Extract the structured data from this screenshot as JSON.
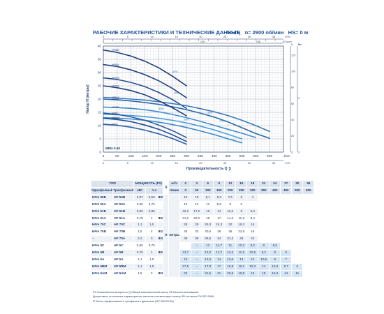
{
  "header": {
    "title": "РАБОЧИЕ ХАРАКТЕРИСТИКИ И ТЕХНИЧЕСКИЕ ДАННЫЕ",
    "freq": "50 Гц",
    "speed": "n= 2900 об/мин",
    "hs": "HS= 0 м"
  },
  "chart_data": {
    "type": "line",
    "xlabel": "Производительность Q",
    "ylabel": "Напор H (метры)",
    "xlim": [
      0,
      650
    ],
    "ylim": [
      0,
      40
    ],
    "x_ticks": [
      0,
      50,
      100,
      150,
      200,
      250,
      300,
      350,
      400,
      450,
      500,
      550,
      600
    ],
    "x_tick_labels": [
      "0",
      "50",
      "100",
      "150",
      "200",
      "250",
      "300",
      "350",
      "400",
      "450",
      "500",
      "550",
      "600"
    ],
    "x_unit": "l/min",
    "y_ticks": [
      0,
      5,
      10,
      15,
      20,
      25,
      30,
      35,
      40
    ],
    "top_axis_ticks": [
      0,
      2,
      4,
      6,
      8,
      10,
      12,
      14,
      16,
      18,
      20,
      22,
      24,
      26,
      28,
      30,
      32,
      34,
      36
    ],
    "top_axis_labels": [
      "0",
      "5",
      "10",
      "15",
      "20",
      "25",
      "30",
      "35"
    ],
    "top_axis_unit": "m³/h",
    "top2_axis_labels": [
      "0",
      "100",
      "150"
    ],
    "top2_axis_unit": "US g.p.m.",
    "right_axis1_labels": [
      "0",
      "20",
      "40",
      "60",
      "80",
      "100",
      "120"
    ],
    "right_axis1_unit": "ft",
    "right_axis2_labels": [
      "0",
      "2",
      "4",
      "6",
      "8",
      "10",
      "12",
      "14"
    ],
    "right_axis2_unit": "bar",
    "bottom2_axis_labels": [
      "0",
      "5",
      "10",
      "15",
      "20",
      "25",
      "30",
      "35"
    ],
    "bottom2_axis_unit": "m³/h",
    "mei_label": "MEI≥ 0.40",
    "grid": true,
    "series": [
      {
        "name": "HF50B",
        "color": "#1f3a7a",
        "x": [
          0,
          50,
          100,
          150,
          200,
          250,
          300
        ],
        "y": [
          38.5,
          37.6,
          36.2,
          34.3,
          31.8,
          28.6,
          25.0
        ]
      },
      {
        "name": "HF50A",
        "color": "#243f82",
        "x": [
          0,
          50,
          100,
          150,
          200,
          250,
          300
        ],
        "y": [
          33.0,
          32.3,
          31.0,
          29.2,
          26.9,
          24.0,
          20.5
        ]
      },
      {
        "name": "HF51B",
        "color": "#2a4d8f",
        "x": [
          0,
          50,
          100,
          150,
          200,
          250,
          300
        ],
        "y": [
          28.0,
          27.4,
          26.3,
          24.7,
          22.5,
          19.8,
          16.5
        ]
      },
      {
        "name": "HF51A",
        "color": "#3a78bd",
        "x": [
          0,
          50,
          100,
          150,
          200,
          250,
          300,
          350,
          400,
          450,
          500,
          550,
          600
        ],
        "y": [
          20.6,
          20.4,
          20.0,
          19.6,
          19.0,
          18.3,
          17.5,
          16.4,
          15.2,
          13.8,
          12.0,
          10.0,
          7.8
        ]
      },
      {
        "name": "HF70C",
        "color": "#2b6aa9",
        "x": [
          0,
          50,
          100,
          150,
          200,
          250,
          300,
          350,
          400,
          450,
          500,
          550,
          600
        ],
        "y": [
          20.0,
          19.7,
          19.3,
          18.7,
          18.0,
          17.1,
          16.0,
          14.7,
          13.2,
          11.4,
          9.2,
          7.0,
          5.2
        ]
      },
      {
        "name": "HF70B",
        "color": "#3f8ed0",
        "x": [
          0,
          50,
          100,
          150,
          200,
          250,
          300,
          350,
          400,
          450,
          500,
          550
        ],
        "y": [
          17.0,
          16.8,
          16.5,
          16.0,
          15.2,
          14.2,
          13.0,
          11.6,
          10.1,
          8.6,
          7.1,
          5.5
        ]
      },
      {
        "name": "HF70A",
        "color": "#1f3f7f",
        "x": [
          0,
          50,
          100,
          150,
          200,
          250,
          300
        ],
        "y": [
          25.0,
          24.3,
          23.2,
          21.6,
          19.4,
          16.7,
          13.7
        ]
      },
      {
        "name": "HF5BM",
        "color": "#4a9fe0",
        "x": [
          0,
          50,
          100,
          150,
          200,
          250,
          300,
          350,
          400,
          450,
          500
        ],
        "y": [
          14.3,
          14.1,
          13.8,
          13.4,
          12.8,
          12.0,
          11.0,
          9.8,
          8.4,
          6.7,
          5.0
        ]
      },
      {
        "name": "HF5AM",
        "color": "#3b87cb",
        "x": [
          0,
          50,
          100,
          150,
          200,
          250,
          300,
          350,
          400,
          450,
          500
        ],
        "y": [
          13.0,
          12.8,
          12.5,
          12.0,
          11.3,
          10.4,
          9.3,
          8.0,
          6.6,
          5.0,
          3.5
        ]
      },
      {
        "name": "HF5C",
        "color": "#2c5fa3",
        "x": [
          0,
          50,
          100,
          150,
          200,
          250,
          300
        ],
        "y": [
          14.7,
          14.2,
          13.3,
          12.0,
          10.2,
          8.1,
          5.5
        ]
      },
      {
        "name": "HF5B",
        "color": "#244d92",
        "x": [
          0,
          50,
          100,
          150,
          200,
          250,
          300
        ],
        "y": [
          12.8,
          12.3,
          11.5,
          10.2,
          8.6,
          6.5,
          4.0
        ]
      },
      {
        "name": "HF5A",
        "color": "#2d5faa",
        "x": [
          0,
          50,
          100,
          150,
          200,
          250,
          300
        ],
        "y": [
          10.5,
          10.1,
          9.4,
          8.3,
          6.9,
          5.1,
          3.0
        ]
      }
    ],
    "efficiency_labels": [
      "40%",
      "45%",
      "48%",
      "50%",
      "55%",
      "60%"
    ]
  },
  "table": {
    "head1": [
      "ТИП",
      "МОЩНОСТЬ (P2)",
      "Q"
    ],
    "head2": [
      "Однофазный",
      "Трехфазный",
      "кВт",
      "л.с."
    ],
    "flow_m3h": [
      "0",
      "3",
      "6",
      "9",
      "12",
      "15",
      "18",
      "21",
      "24",
      "27",
      "30",
      "36"
    ],
    "flow_lmin": [
      "0",
      "50",
      "100",
      "150",
      "200",
      "250",
      "300",
      "350",
      "400",
      "450",
      "500",
      "600"
    ],
    "unit_m3h": "м³/ч",
    "unit_lmin": "л/мин",
    "h_label": "H",
    "h_unit": "метры",
    "rows": [
      {
        "single": "HFm 50B",
        "three": "HF 50B",
        "kw": "0,37",
        "hp": "0,50",
        "ie": "IE2",
        "values": [
          "10",
          "10",
          "9,1",
          "8,3",
          "7,5",
          "6",
          "4",
          "",
          "",
          "",
          "",
          ""
        ]
      },
      {
        "single": "HFm 50A",
        "three": "HF 50A",
        "kw": "0,55",
        "hp": "0,75",
        "ie": "",
        "values": [
          "12",
          "12",
          "11",
          "9,6",
          "8",
          "6",
          "",
          "",
          "",
          "",
          "",
          ""
        ]
      },
      {
        "single": "HFm 51B",
        "three": "HF 51B",
        "kw": "0,60",
        "hp": "0,85",
        "ie": "",
        "values": [
          "16,2",
          "17,2",
          "16",
          "14",
          "11,6",
          "9",
          "5,4",
          "",
          "",
          "",
          "",
          ""
        ]
      },
      {
        "single": "HFm 51A",
        "three": "HF 51A",
        "kw": "0,75",
        "hp": "1",
        "ie": "IE2",
        "values": [
          "21,2",
          "20,2",
          "19",
          "17",
          "14,6",
          "11,6",
          "8,4",
          "",
          "",
          "",
          "",
          ""
        ]
      },
      {
        "single": "HFm 70C",
        "three": "HF 70C",
        "kw": "1,1",
        "hp": "1,5",
        "ie": "",
        "values": [
          "29",
          "28",
          "26,3",
          "24,3",
          "22",
          "18,3",
          "15",
          "",
          "",
          "",
          "",
          ""
        ]
      },
      {
        "single": "HFm 70B",
        "three": "HF 70B",
        "kw": "1,5",
        "hp": "2",
        "ie": "IE2",
        "values": [
          "33",
          "32",
          "30,5",
          "28",
          "26",
          "22,5",
          "18",
          "",
          "",
          "",
          "",
          ""
        ]
      },
      {
        "single": "–",
        "three": "HF 70A",
        "kw": "2,2",
        "hp": "3",
        "ie": "IE3",
        "values": [
          "39",
          "38",
          "36,5",
          "34",
          "31,3",
          "28",
          "24",
          "",
          "",
          "",
          "",
          ""
        ]
      },
      {
        "single": "HFm 5C",
        "three": "HF 5C",
        "kw": "0,55",
        "hp": "0,75",
        "ie": "",
        "values": [
          "",
          "–",
          "12",
          "11,7",
          "11",
          "10,2",
          "9,2",
          "8",
          "6,5",
          "",
          "",
          ""
        ]
      },
      {
        "single": "HFm 5B",
        "three": "HF 5B",
        "kw": "0,75",
        "hp": "1",
        "ie": "IE2",
        "values": [
          "13,7",
          "–",
          "13,2",
          "12,7",
          "12,3",
          "11,6",
          "10,5",
          "9,2",
          "8",
          "6",
          "",
          ""
        ]
      },
      {
        "single": "HFm 5A",
        "three": "HF 5A",
        "kw": "1,1",
        "hp": "1,5",
        "ie": "",
        "values": [
          "15",
          "–",
          "14,6",
          "14",
          "13,6",
          "13",
          "12",
          "10,5",
          "9",
          "7",
          "",
          ""
        ]
      },
      {
        "single": "HFm 5BM",
        "three": "HF 5BM",
        "kw": "1,1",
        "hp": "1,5",
        "ie": "",
        "values": [
          "17,5",
          "–",
          "17,3",
          "17",
          "16,5",
          "16,1",
          "15,3",
          "14",
          "12,8",
          "9,7",
          "6",
          ""
        ]
      },
      {
        "single": "HFm 5AM",
        "three": "HF 5AM",
        "kw": "1,5",
        "hp": "2",
        "ie": "IE3",
        "values": [
          "22",
          "–",
          "21,5",
          "21",
          "20,5",
          "19,8",
          "19",
          "18",
          "16,3",
          "14",
          "11",
          ""
        ]
      }
    ]
  },
  "notes": {
    "line1": "P2  Номинальная мощность     Q  Общий максимальный напор   HS  Высота всасывания",
    "line2": "Допустимое отклонение характеристик насосов соответствует классу 3B согласно EN ISO 9906.",
    "line3": "IE  Класс эффективности трехфазного двигателя (IEC 60034-30)"
  }
}
